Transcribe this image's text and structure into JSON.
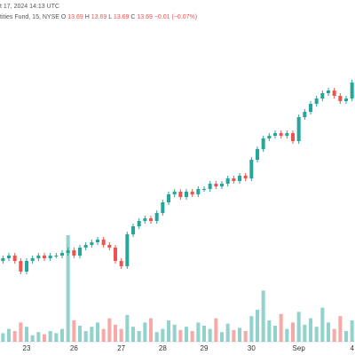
{
  "chart_data": {
    "type": "candlestick",
    "header": {
      "timestamp": "t 17, 2024 14:13 UTC",
      "symbol": "tities Fund, 15, NYSE",
      "open_label": "O",
      "open": 13.69,
      "high_label": "H",
      "high": 13.69,
      "low_label": "L",
      "low": 13.69,
      "close_label": "C",
      "close": 13.69,
      "change": "−0.01 (−0.07%)"
    },
    "categories": [
      null,
      null,
      null,
      null,
      "23",
      null,
      null,
      null,
      null,
      null,
      null,
      null,
      "26",
      null,
      null,
      null,
      null,
      null,
      null,
      null,
      "27",
      null,
      null,
      null,
      null,
      null,
      null,
      "28",
      null,
      null,
      null,
      null,
      null,
      null,
      "29",
      null,
      null,
      null,
      null,
      null,
      null,
      null,
      "30",
      null,
      null,
      null,
      null,
      null,
      null,
      null,
      "Sep",
      null,
      null,
      null,
      null,
      null,
      null,
      null,
      null,
      "4"
    ],
    "open": [
      13.02,
      13.03,
      13.04,
      13.02,
      12.98,
      13.02,
      13.03,
      13.04,
      13.03,
      13.04,
      13.04,
      13.05,
      13.06,
      13.04,
      13.07,
      13.08,
      13.09,
      13.1,
      13.08,
      13.07,
      13.02,
      13.0,
      13.12,
      13.15,
      13.17,
      13.18,
      13.17,
      13.2,
      13.24,
      13.27,
      13.28,
      13.26,
      13.28,
      13.27,
      13.29,
      13.29,
      13.31,
      13.3,
      13.31,
      13.33,
      13.32,
      13.34,
      13.33,
      13.4,
      13.44,
      13.48,
      13.49,
      13.5,
      13.49,
      13.5,
      13.47,
      13.56,
      13.58,
      13.61,
      13.63,
      13.65,
      13.66,
      13.64,
      13.62,
      13.63
    ],
    "high": [
      13.04,
      13.05,
      13.05,
      13.03,
      13.03,
      13.04,
      13.05,
      13.05,
      13.05,
      13.05,
      13.06,
      13.07,
      13.07,
      13.08,
      13.09,
      13.1,
      13.11,
      13.11,
      13.09,
      13.08,
      13.03,
      13.13,
      13.16,
      13.18,
      13.19,
      13.19,
      13.21,
      13.25,
      13.28,
      13.29,
      13.29,
      13.29,
      13.29,
      13.3,
      13.3,
      13.32,
      13.32,
      13.32,
      13.34,
      13.34,
      13.35,
      13.35,
      13.41,
      13.45,
      13.49,
      13.5,
      13.51,
      13.51,
      13.51,
      13.51,
      13.57,
      13.59,
      13.62,
      13.64,
      13.66,
      13.67,
      13.67,
      13.65,
      13.64,
      13.7
    ],
    "low": [
      13.01,
      13.02,
      13.01,
      12.97,
      12.97,
      13.01,
      13.02,
      13.02,
      13.02,
      13.03,
      13.03,
      13.04,
      13.03,
      13.03,
      13.06,
      13.07,
      13.08,
      13.07,
      13.06,
      13.01,
      12.99,
      12.99,
      13.11,
      13.14,
      13.16,
      13.16,
      13.16,
      13.19,
      13.23,
      13.26,
      13.25,
      13.25,
      13.26,
      13.26,
      13.28,
      13.28,
      13.29,
      13.29,
      13.3,
      13.31,
      13.31,
      13.32,
      13.32,
      13.39,
      13.43,
      13.47,
      13.48,
      13.48,
      13.48,
      13.46,
      13.46,
      13.55,
      13.57,
      13.6,
      13.62,
      13.64,
      13.63,
      13.61,
      13.61,
      13.62
    ],
    "close": [
      13.03,
      13.04,
      13.02,
      12.98,
      13.02,
      13.03,
      13.04,
      13.03,
      13.04,
      13.04,
      13.05,
      13.06,
      13.04,
      13.07,
      13.08,
      13.09,
      13.1,
      13.08,
      13.07,
      13.02,
      13.0,
      13.12,
      13.15,
      13.17,
      13.18,
      13.17,
      13.2,
      13.24,
      13.27,
      13.28,
      13.26,
      13.28,
      13.27,
      13.29,
      13.29,
      13.31,
      13.3,
      13.31,
      13.33,
      13.32,
      13.34,
      13.33,
      13.4,
      13.44,
      13.48,
      13.49,
      13.5,
      13.49,
      13.5,
      13.47,
      13.56,
      13.58,
      13.61,
      13.63,
      13.65,
      13.66,
      13.64,
      13.62,
      13.63,
      13.69
    ],
    "volume": [
      8,
      12,
      10,
      18,
      14,
      6,
      9,
      7,
      10,
      8,
      12,
      100,
      20,
      15,
      10,
      14,
      18,
      12,
      22,
      16,
      12,
      25,
      14,
      10,
      18,
      22,
      9,
      12,
      20,
      16,
      11,
      14,
      10,
      18,
      15,
      12,
      22,
      9,
      17,
      11,
      13,
      10,
      24,
      30,
      48,
      20,
      15,
      26,
      12,
      18,
      28,
      16,
      22,
      14,
      32,
      18,
      12,
      24,
      10,
      20
    ],
    "ylim": [
      12.9,
      13.8
    ],
    "volume_lim": [
      0,
      100
    ],
    "up_color": "#26a69a",
    "down_color": "#ef5350"
  }
}
